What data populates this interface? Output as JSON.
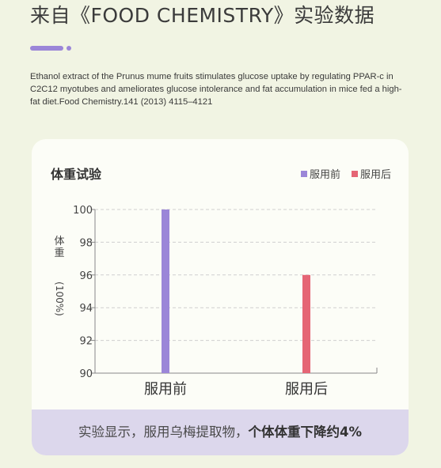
{
  "page": {
    "title": "来自《FOOD CHEMISTRY》实验数据",
    "citation": "Ethanol extract of the Prunus mume fruits stimulates glucose uptake by regulating PPAR-c in C2C12 myotubes and ameliorates glucose intolerance and fat accumulation in mice fed a high-fat diet.Food Chemistry.141 (2013) 4115–4121"
  },
  "card": {
    "title": "体重试验",
    "footer_text": "实验显示，服用乌梅提取物，",
    "footer_emphasis": "个体体重下降约4%"
  },
  "colors": {
    "before": "#9b86d8",
    "after": "#e56575",
    "accent": "#9b86d8",
    "axis": "#888888",
    "grid": "#cfcfcf"
  },
  "chart_data": {
    "type": "bar",
    "title": "体重试验",
    "categories": [
      "服用前",
      "服用后"
    ],
    "values": [
      100,
      96
    ],
    "series_colors": [
      "#9b86d8",
      "#e56575"
    ],
    "legend": [
      "服用前",
      "服用后"
    ],
    "legend_position": "top-right",
    "ylabel": "体重",
    "ylabel_unit": "(100%)",
    "yticks": [
      90,
      92,
      94,
      96,
      98,
      100
    ],
    "ylim": [
      90,
      100
    ],
    "grid": "horizontal dashed"
  }
}
